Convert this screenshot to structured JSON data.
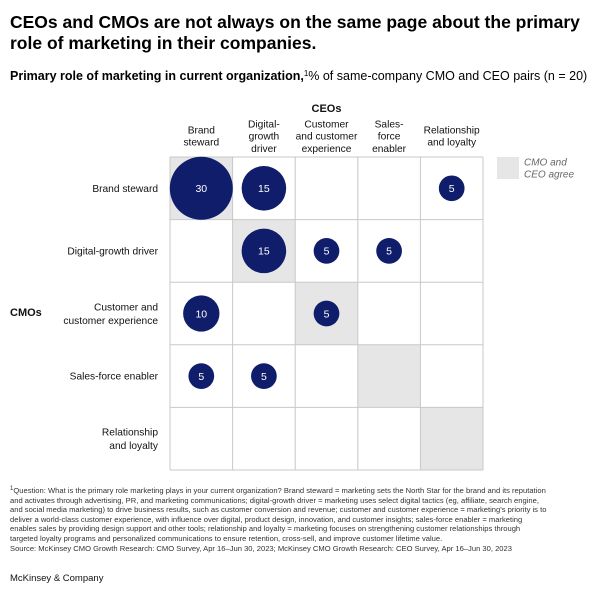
{
  "title": "CEOs and CMOs are not always on the same page about the primary role of marketing in their companies.",
  "subtitle": {
    "bold": "Primary role of marketing in current organization,",
    "sup": "1",
    "rest": "% of same-company CMO and CEO pairs (n = 20)"
  },
  "chart_data": {
    "type": "matrix-bubble",
    "col_axis_label": "CEOs",
    "row_axis_label": "CMOs",
    "columns": [
      [
        "Brand",
        "steward"
      ],
      [
        "Digital-",
        "growth",
        "driver"
      ],
      [
        "Customer",
        "and customer",
        "experience"
      ],
      [
        "Sales-",
        "force",
        "enabler"
      ],
      [
        "Relationship",
        "and loyalty"
      ]
    ],
    "rows": [
      [
        "Brand steward"
      ],
      [
        "Digital-growth driver"
      ],
      [
        "Customer and",
        "customer experience"
      ],
      [
        "Sales-force enabler"
      ],
      [
        "Relationship",
        "and loyalty"
      ]
    ],
    "values": [
      [
        30,
        15,
        0,
        0,
        5
      ],
      [
        0,
        15,
        5,
        5,
        0
      ],
      [
        10,
        0,
        5,
        0,
        0
      ],
      [
        5,
        5,
        0,
        0,
        0
      ],
      [
        0,
        0,
        0,
        0,
        0
      ]
    ],
    "legend": [
      "CMO and",
      "CEO agree"
    ],
    "colors": {
      "bubble": "#0f1d6b",
      "agree": "#e6e6e6",
      "grid": "#c8c8c8"
    }
  },
  "footnote": {
    "sup": "1",
    "lines": [
      "Question: What is the primary role marketing plays in your current organization? Brand steward = marketing sets the North Star for the brand and its reputation",
      "and activates through advertising, PR, and marketing communications; digital-growth driver = marketing uses select digital tactics (eg, affiliate, search engine,",
      "and social media marketing) to drive business results, such as customer conversion and revenue; customer and customer experience = marketing's priority is to",
      "deliver a world-class customer experience, with influence over digital, product design, innovation, and customer insights; sales-force enabler = marketing",
      "enables sales by providing design support and other tools; relationship and loyalty = marketing focuses on strengthening customer relationships through",
      "targeted loyalty programs and personalized communications to ensure retention, cross-sell, and improve customer lifetime value."
    ],
    "source": "Source: McKinsey CMO Growth Research: CMO Survey, Apr 16–Jun 30, 2023; McKinsey CMO Growth Research: CEO Survey, Apr 16–Jun 30, 2023"
  },
  "brand": "McKinsey & Company"
}
